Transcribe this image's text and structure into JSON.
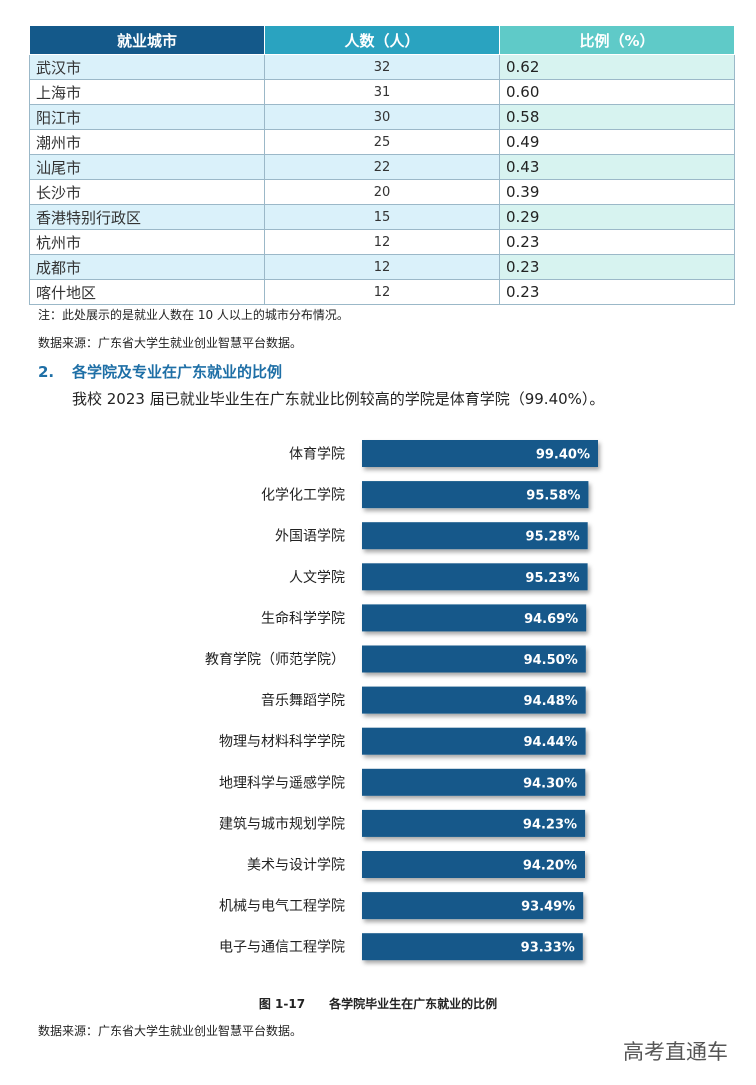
{
  "table": {
    "headers": [
      "就业城市",
      "人数（人）",
      "比例（%）"
    ],
    "rows": [
      [
        "武汉市",
        "32",
        "0.62"
      ],
      [
        "上海市",
        "31",
        "0.60"
      ],
      [
        "阳江市",
        "30",
        "0.58"
      ],
      [
        "潮州市",
        "25",
        "0.49"
      ],
      [
        "汕尾市",
        "22",
        "0.43"
      ],
      [
        "长沙市",
        "20",
        "0.39"
      ],
      [
        "香港特别行政区",
        "15",
        "0.29"
      ],
      [
        "杭州市",
        "12",
        "0.23"
      ],
      [
        "成都市",
        "12",
        "0.23"
      ],
      [
        "喀什地区",
        "12",
        "0.23"
      ]
    ]
  },
  "table_note": "注：此处展示的是就业人数在 10 人以上的城市分布情况。",
  "source_1": "数据来源：广东省大学生就业创业智慧平台数据。",
  "section": {
    "number": "2.",
    "title": "各学院及专业在广东就业的比例"
  },
  "paragraph": "我校 2023 届已就业毕业生在广东就业比例较高的学院是体育学院（99.40%）。",
  "chart_data": {
    "type": "bar",
    "orientation": "horizontal",
    "categories": [
      "体育学院",
      "化学化工学院",
      "外国语学院",
      "人文学院",
      "生命科学学院",
      "教育学院（师范学院）",
      "音乐舞蹈学院",
      "物理与材料科学学院",
      "地理科学与遥感学院",
      "建筑与城市规划学院",
      "美术与设计学院",
      "机械与电气工程学院",
      "电子与通信工程学院"
    ],
    "values": [
      99.4,
      95.58,
      95.28,
      95.23,
      94.69,
      94.5,
      94.48,
      94.44,
      94.3,
      94.23,
      94.2,
      93.49,
      93.33
    ],
    "value_labels": [
      "99.40%",
      "95.58%",
      "95.28%",
      "95.23%",
      "94.69%",
      "94.50%",
      "94.48%",
      "94.44%",
      "94.30%",
      "94.23%",
      "94.20%",
      "93.49%",
      "93.33%"
    ],
    "bar_color": "#14598a",
    "grid": false,
    "legend": "none"
  },
  "caption": {
    "figure": "图 1-17",
    "title": "各学院毕业生在广东就业的比例"
  },
  "source_2": "数据来源：广东省大学生就业创业智慧平台数据。",
  "watermark": "高考直通车"
}
